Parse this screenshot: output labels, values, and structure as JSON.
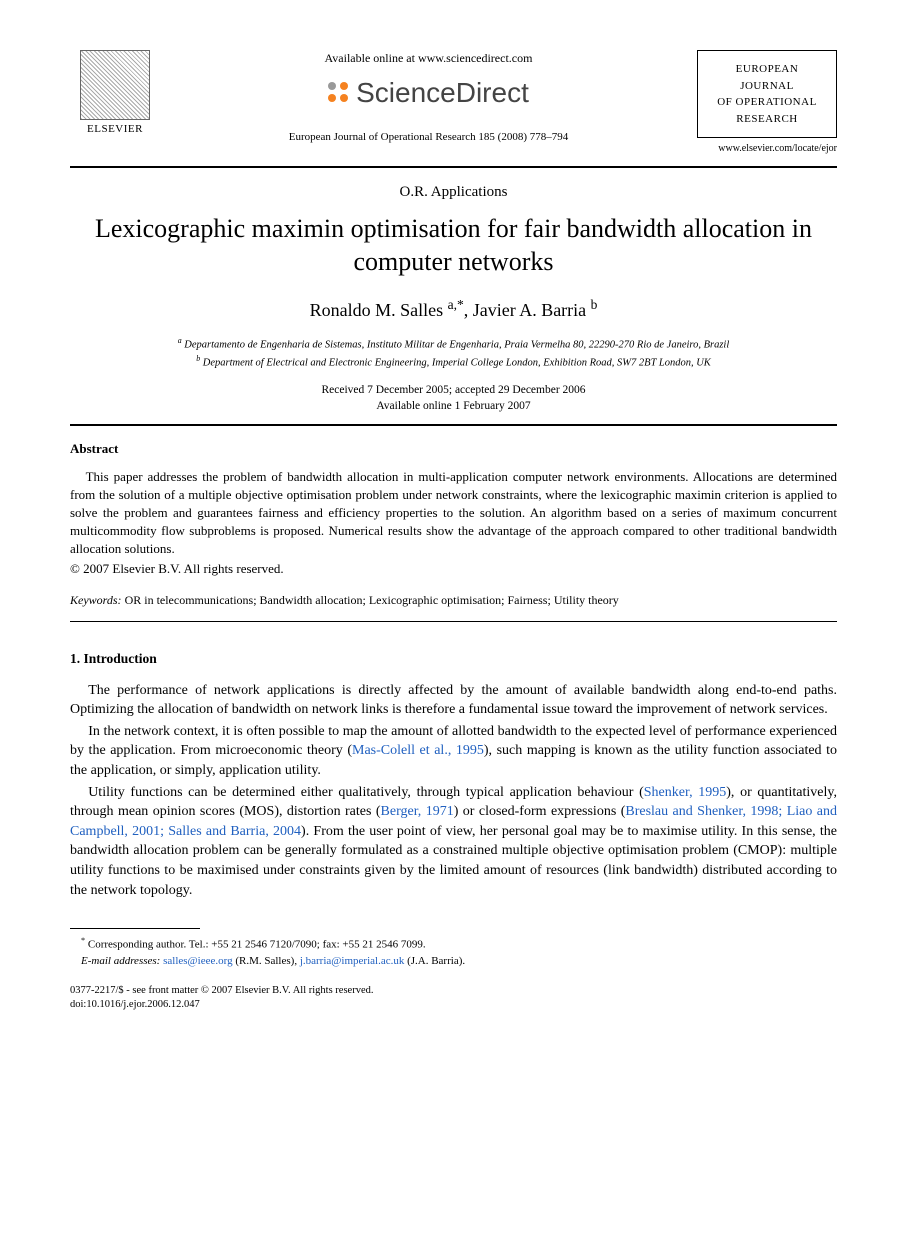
{
  "header": {
    "available_text": "Available online at www.sciencedirect.com",
    "sciencedirect": "ScienceDirect",
    "elsevier": "ELSEVIER",
    "citation": "European Journal of Operational Research 185 (2008) 778–794",
    "journal_box_l1": "EUROPEAN",
    "journal_box_l2": "JOURNAL",
    "journal_box_l3": "OF OPERATIONAL",
    "journal_box_l4": "RESEARCH",
    "journal_url": "www.elsevier.com/locate/ejor"
  },
  "front": {
    "section": "O.R. Applications",
    "title": "Lexicographic maximin optimisation for fair bandwidth allocation in computer networks",
    "author1": "Ronaldo M. Salles",
    "author1_sup": "a,*",
    "author2": "Javier A. Barria",
    "author2_sup": "b",
    "aff_a": "Departamento de Engenharia de Sistemas, Instituto Militar de Engenharia, Praia Vermelha 80, 22290-270 Rio de Janeiro, Brazil",
    "aff_b": "Department of Electrical and Electronic Engineering, Imperial College London, Exhibition Road, SW7 2BT London, UK",
    "dates_l1": "Received 7 December 2005; accepted 29 December 2006",
    "dates_l2": "Available online 1 February 2007"
  },
  "abstract": {
    "heading": "Abstract",
    "body": "This paper addresses the problem of bandwidth allocation in multi-application computer network environments. Allocations are determined from the solution of a multiple objective optimisation problem under network constraints, where the lexicographic maximin criterion is applied to solve the problem and guarantees fairness and efficiency properties to the solution. An algorithm based on a series of maximum concurrent multicommodity flow subproblems is proposed. Numerical results show the advantage of the approach compared to other traditional bandwidth allocation solutions.",
    "copyright": "© 2007 Elsevier B.V. All rights reserved.",
    "kw_label": "Keywords:",
    "kw_text": " OR in telecommunications; Bandwidth allocation; Lexicographic optimisation; Fairness; Utility theory"
  },
  "intro": {
    "heading": "1. Introduction",
    "p1": "The performance of network applications is directly affected by the amount of available bandwidth along end-to-end paths. Optimizing the allocation of bandwidth on network links is therefore a fundamental issue toward the improvement of network services.",
    "p2a": "In the network context, it is often possible to map the amount of allotted bandwidth to the expected level of performance experienced by the application. From microeconomic theory (",
    "p2_cite1": "Mas-Colell et al., 1995",
    "p2b": "), such mapping is known as the utility function associated to the application, or simply, application utility.",
    "p3a": "Utility functions can be determined either qualitatively, through typical application behaviour (",
    "p3_cite1": "Shenker, 1995",
    "p3b": "), or quantitatively, through mean opinion scores (MOS), distortion rates (",
    "p3_cite2": "Berger, 1971",
    "p3c": ") or closed-form expressions (",
    "p3_cite3": "Breslau and Shenker, 1998; Liao and Campbell, 2001; Salles and Barria, 2004",
    "p3d": "). From the user point of view, her personal goal may be to maximise utility. In this sense, the bandwidth allocation problem can be generally formulated as a constrained multiple objective optimisation problem (CMOP): multiple utility functions to be maximised under constraints given by the limited amount of resources (link bandwidth) distributed according to the network topology."
  },
  "footnote": {
    "corresp": "Corresponding author. Tel.: +55 21 2546 7120/7090; fax: +55 21 2546 7099.",
    "email_label": "E-mail addresses:",
    "email1": "salles@ieee.org",
    "email1_who": " (R.M. Salles), ",
    "email2": "j.barria@imperial.ac.uk",
    "email2_who": " (J.A. Barria)."
  },
  "footer": {
    "line1": "0377-2217/$ - see front matter © 2007 Elsevier B.V. All rights reserved.",
    "line2": "doi:10.1016/j.ejor.2006.12.047"
  }
}
